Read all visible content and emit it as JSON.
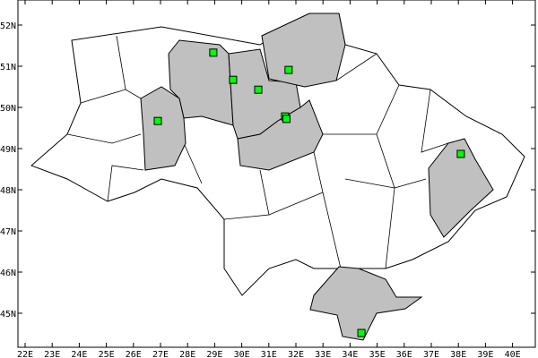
{
  "map": {
    "x_tick_labels": [
      "22E",
      "23E",
      "24E",
      "25E",
      "26E",
      "27E",
      "28E",
      "29E",
      "30E",
      "31E",
      "32E",
      "33E",
      "34E",
      "35E",
      "36E",
      "37E",
      "38E",
      "39E",
      "40E"
    ],
    "y_tick_labels": [
      "45N",
      "46N",
      "47N",
      "48N",
      "49N",
      "50N",
      "51N",
      "52N"
    ],
    "lon_range": [
      21.8,
      40.5
    ],
    "lat_range": [
      44.2,
      52.6
    ],
    "colors": {
      "highlight_fill": "#c0c0c0",
      "marker": "#00ff00",
      "border": "#000000",
      "background": "#ffffff"
    },
    "highlighted_regions": [
      "Zhytomyr",
      "Khmelnytskyi",
      "Kyiv",
      "Chernihiv",
      "Cherkasy",
      "Donetsk",
      "Crimea"
    ],
    "markers": [
      {
        "lon": 28.95,
        "lat": 51.33
      },
      {
        "lon": 29.68,
        "lat": 50.67
      },
      {
        "lon": 30.61,
        "lat": 50.43
      },
      {
        "lon": 31.73,
        "lat": 50.91
      },
      {
        "lon": 31.6,
        "lat": 49.78
      },
      {
        "lon": 31.65,
        "lat": 49.72
      },
      {
        "lon": 26.9,
        "lat": 49.67
      },
      {
        "lon": 38.09,
        "lat": 48.87
      },
      {
        "lon": 34.42,
        "lat": 44.52
      }
    ]
  }
}
